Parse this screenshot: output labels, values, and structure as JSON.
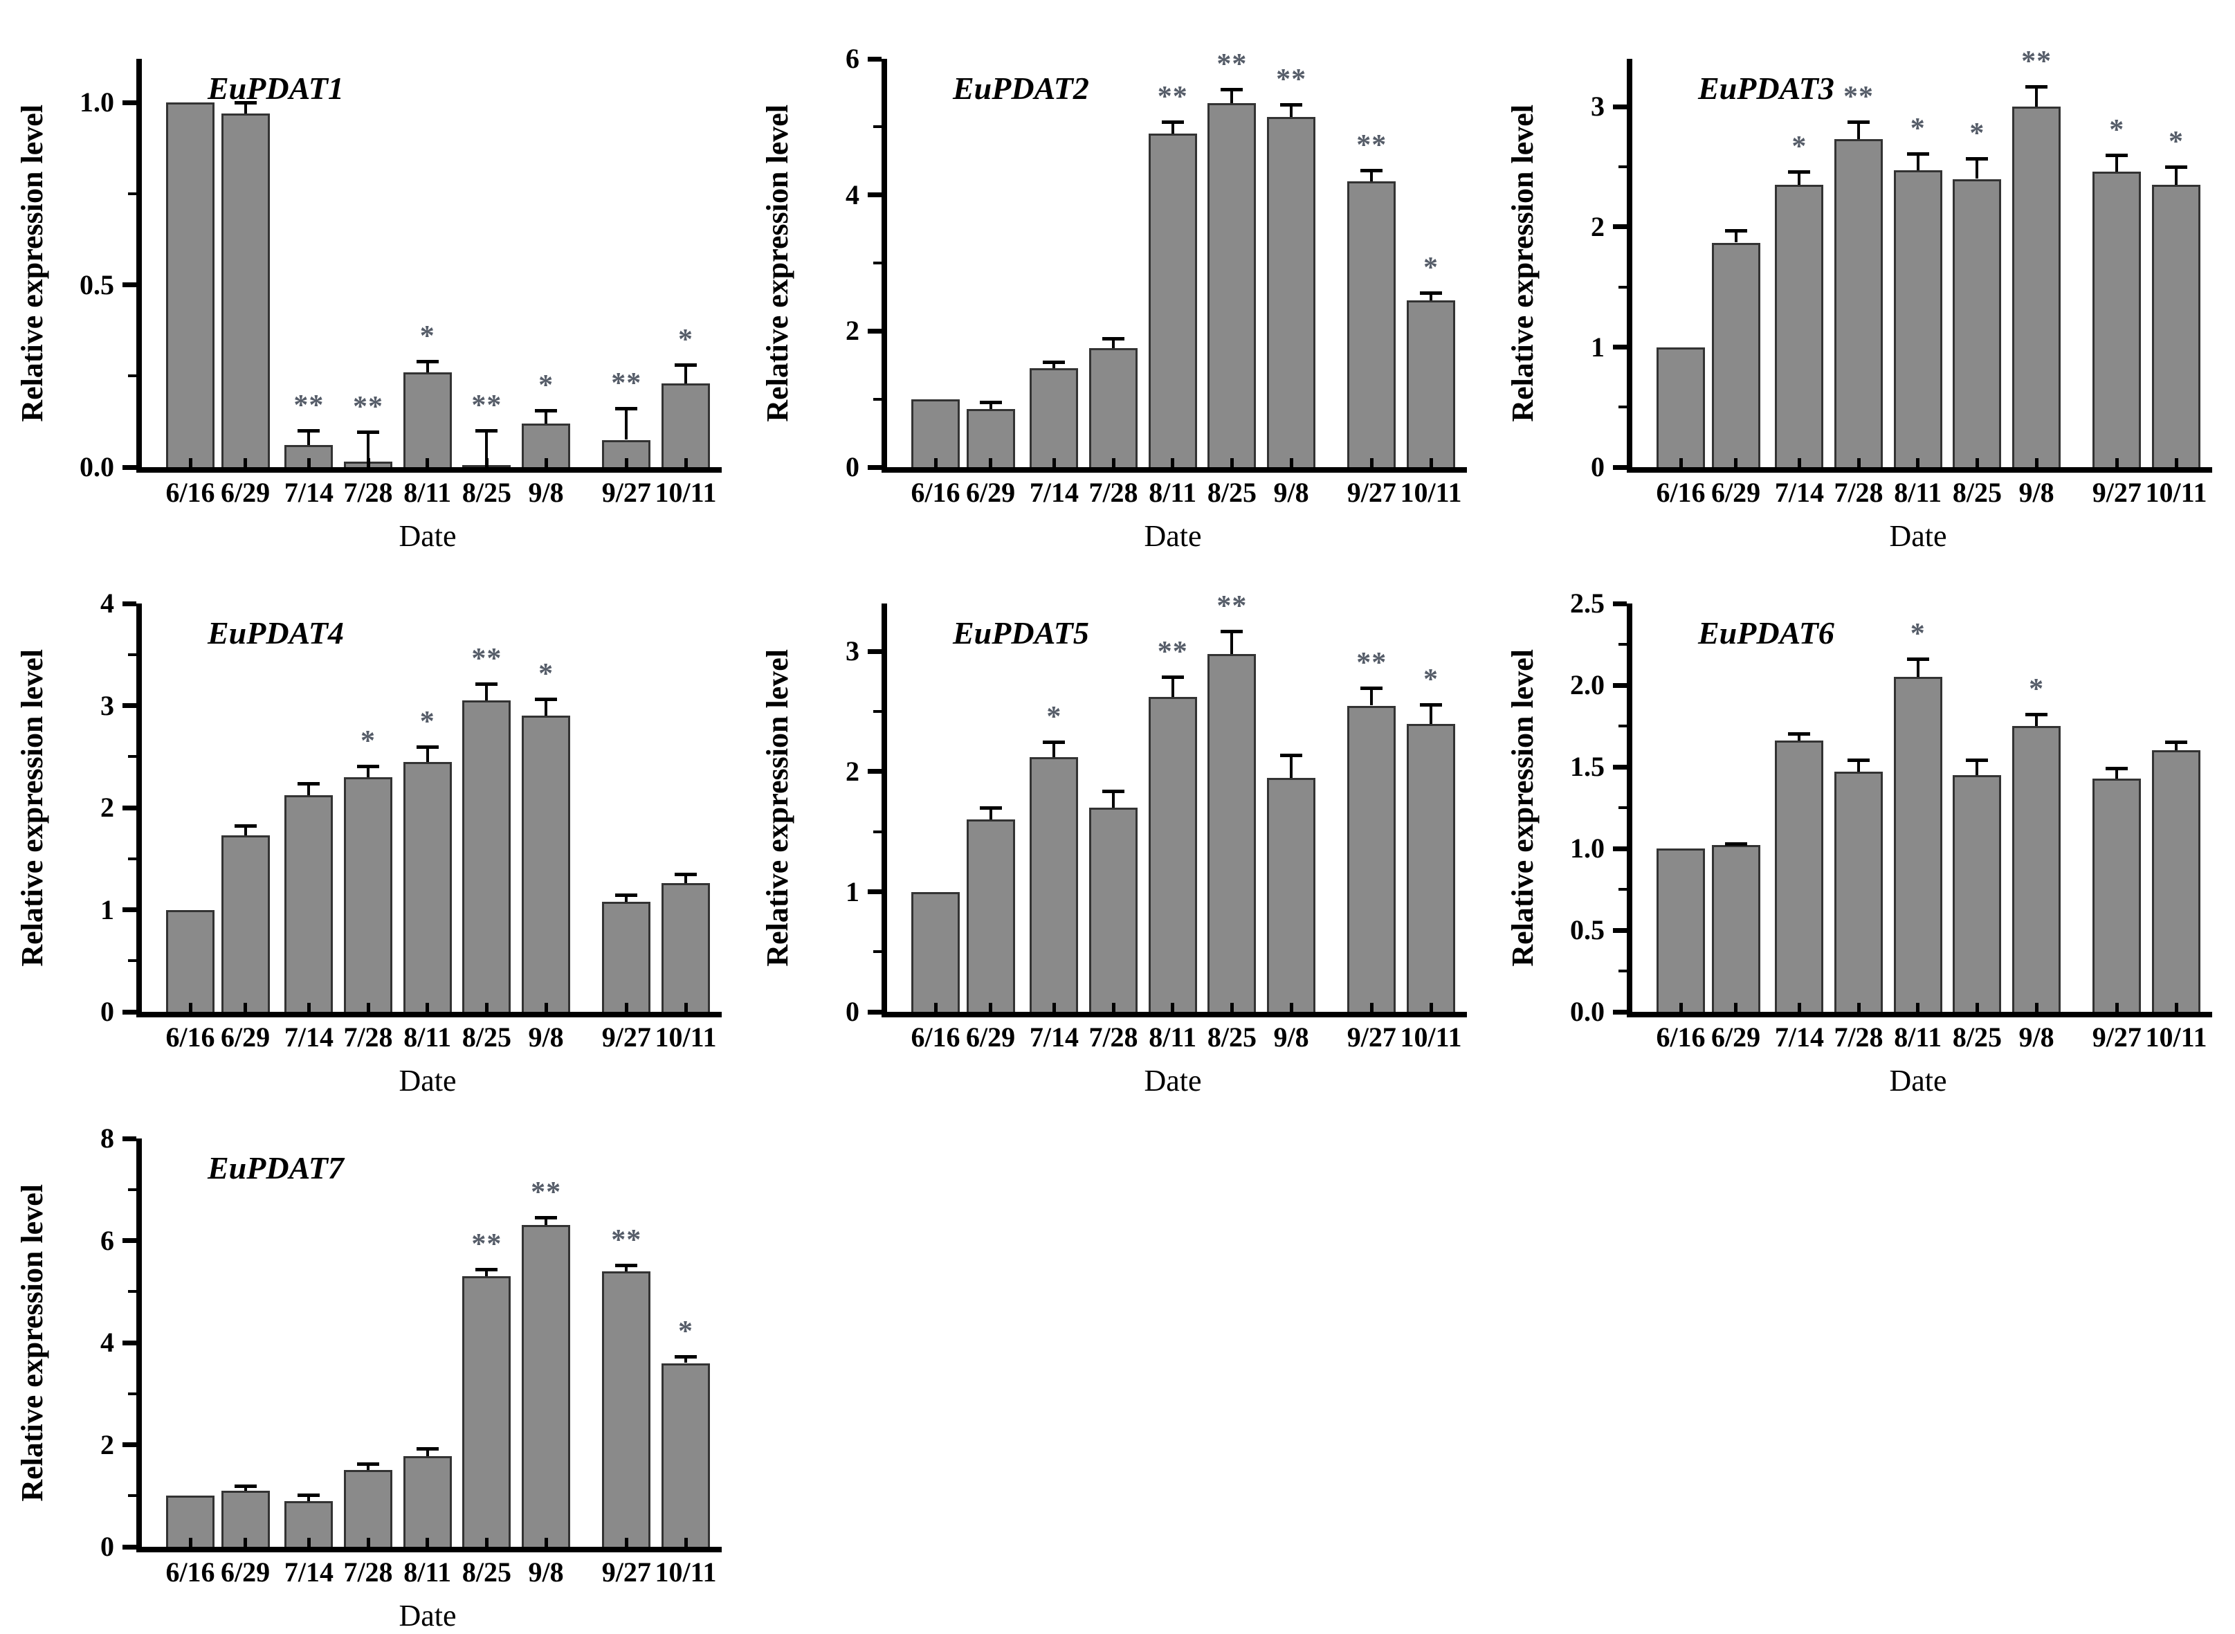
{
  "figure": {
    "background": "#ffffff",
    "ylabel": "Relative expression level",
    "xlabel": "Date",
    "categories": [
      "6/16",
      "6/29",
      "7/14",
      "7/28",
      "8/11",
      "8/25",
      "9/8",
      "9/27",
      "10/11"
    ],
    "day_offsets": [
      0,
      13,
      28,
      42,
      56,
      70,
      84,
      103,
      117
    ],
    "colors": {
      "bar_fill": "#8a8a8a",
      "bar_border": "#333333",
      "axis": "#000000",
      "text": "#000000",
      "star": "#555c68"
    }
  },
  "chart_data": [
    {
      "type": "bar",
      "title": "EuPDAT1",
      "xlabel": "Date",
      "ylabel": "Relative expression level",
      "categories": [
        "6/16",
        "6/29",
        "7/14",
        "7/28",
        "8/11",
        "8/25",
        "9/8",
        "9/27",
        "10/11"
      ],
      "values": [
        1.0,
        0.97,
        0.06,
        0.015,
        0.26,
        0.005,
        0.12,
        0.075,
        0.23
      ],
      "errors": [
        0,
        0.035,
        0.045,
        0.085,
        0.035,
        0.1,
        0.04,
        0.09,
        0.055
      ],
      "significance": [
        "",
        "",
        "**",
        "**",
        "*",
        "**",
        "*",
        "**",
        "*"
      ],
      "ylim": [
        0,
        1.12
      ],
      "ytick_values": [
        0,
        0.5,
        1.0
      ],
      "ytick_labels": [
        "0.0",
        "0.5",
        "1.0"
      ],
      "yminor_values": [
        0.25,
        0.75
      ]
    },
    {
      "type": "bar",
      "title": "EuPDAT2",
      "xlabel": "Date",
      "ylabel": "Relative expression level",
      "categories": [
        "6/16",
        "6/29",
        "7/14",
        "7/28",
        "8/11",
        "8/25",
        "9/8",
        "9/27",
        "10/11"
      ],
      "values": [
        1.0,
        0.85,
        1.45,
        1.75,
        4.9,
        5.35,
        5.15,
        4.2,
        2.45
      ],
      "errors": [
        0,
        0.13,
        0.12,
        0.16,
        0.2,
        0.22,
        0.2,
        0.18,
        0.13
      ],
      "significance": [
        "",
        "",
        "",
        "",
        "**",
        "**",
        "**",
        "**",
        "*"
      ],
      "ylim": [
        0,
        6
      ],
      "ytick_values": [
        0,
        2,
        4,
        6
      ],
      "ytick_labels": [
        "0",
        "2",
        "4",
        "6"
      ],
      "yminor_values": [
        1,
        3,
        5
      ]
    },
    {
      "type": "bar",
      "title": "EuPDAT3",
      "xlabel": "Date",
      "ylabel": "Relative expression level",
      "categories": [
        "6/16",
        "6/29",
        "7/14",
        "7/28",
        "8/11",
        "8/25",
        "9/8",
        "9/27",
        "10/11"
      ],
      "values": [
        1.0,
        1.87,
        2.35,
        2.73,
        2.47,
        2.4,
        3.0,
        2.46,
        2.35
      ],
      "errors": [
        0,
        0.11,
        0.12,
        0.16,
        0.15,
        0.18,
        0.18,
        0.15,
        0.16
      ],
      "significance": [
        "",
        "",
        "*",
        "**",
        "*",
        "*",
        "**",
        "*",
        "*"
      ],
      "ylim": [
        0,
        3.4
      ],
      "ytick_values": [
        0,
        1,
        2,
        3
      ],
      "ytick_labels": [
        "0",
        "1",
        "2",
        "3"
      ],
      "yminor_values": [
        0.5,
        1.5,
        2.5
      ]
    },
    {
      "type": "bar",
      "title": "EuPDAT4",
      "xlabel": "Date",
      "ylabel": "Relative expression level",
      "categories": [
        "6/16",
        "6/29",
        "7/14",
        "7/28",
        "8/11",
        "8/25",
        "9/8",
        "9/27",
        "10/11"
      ],
      "values": [
        1.0,
        1.73,
        2.12,
        2.3,
        2.45,
        3.05,
        2.9,
        1.08,
        1.26
      ],
      "errors": [
        0,
        0.11,
        0.13,
        0.12,
        0.16,
        0.18,
        0.18,
        0.08,
        0.1
      ],
      "significance": [
        "",
        "",
        "",
        "*",
        "*",
        "**",
        "*",
        "",
        ""
      ],
      "ylim": [
        0,
        4
      ],
      "ytick_values": [
        0,
        1,
        2,
        3,
        4
      ],
      "ytick_labels": [
        "0",
        "1",
        "2",
        "3",
        "4"
      ],
      "yminor_values": [
        0.5,
        1.5,
        2.5,
        3.5
      ]
    },
    {
      "type": "bar",
      "title": "EuPDAT5",
      "xlabel": "Date",
      "ylabel": "Relative expression level",
      "categories": [
        "6/16",
        "6/29",
        "7/14",
        "7/28",
        "8/11",
        "8/25",
        "9/8",
        "9/27",
        "10/11"
      ],
      "values": [
        1.0,
        1.6,
        2.12,
        1.7,
        2.62,
        2.98,
        1.95,
        2.55,
        2.4
      ],
      "errors": [
        0,
        0.11,
        0.14,
        0.15,
        0.18,
        0.2,
        0.2,
        0.16,
        0.17
      ],
      "significance": [
        "",
        "",
        "*",
        "",
        "**",
        "**",
        "",
        "**",
        "*"
      ],
      "ylim": [
        0,
        3.4
      ],
      "ytick_values": [
        0,
        1,
        2,
        3
      ],
      "ytick_labels": [
        "0",
        "1",
        "2",
        "3"
      ],
      "yminor_values": [
        0.5,
        1.5,
        2.5
      ]
    },
    {
      "type": "bar",
      "title": "EuPDAT6",
      "xlabel": "Date",
      "ylabel": "Relative expression level",
      "categories": [
        "6/16",
        "6/29",
        "7/14",
        "7/28",
        "8/11",
        "8/25",
        "9/8",
        "9/27",
        "10/11"
      ],
      "values": [
        1.0,
        1.02,
        1.66,
        1.47,
        2.05,
        1.45,
        1.75,
        1.43,
        1.6
      ],
      "errors": [
        0,
        0.02,
        0.05,
        0.08,
        0.12,
        0.1,
        0.08,
        0.07,
        0.06
      ],
      "significance": [
        "",
        "",
        "",
        "",
        "*",
        "",
        "*",
        "",
        ""
      ],
      "ylim": [
        0,
        2.5
      ],
      "ytick_values": [
        0,
        0.5,
        1.0,
        1.5,
        2.0,
        2.5
      ],
      "ytick_labels": [
        "0.0",
        "0.5",
        "1.0",
        "1.5",
        "2.0",
        "2.5"
      ],
      "yminor_values": [
        0.25,
        0.75,
        1.25,
        1.75,
        2.25
      ]
    },
    {
      "type": "bar",
      "title": "EuPDAT7",
      "xlabel": "Date",
      "ylabel": "Relative expression level",
      "categories": [
        "6/16",
        "6/29",
        "7/14",
        "7/28",
        "8/11",
        "8/25",
        "9/8",
        "9/27",
        "10/11"
      ],
      "values": [
        1.0,
        1.1,
        0.9,
        1.5,
        1.78,
        5.3,
        6.3,
        5.4,
        3.6
      ],
      "errors": [
        0,
        0.12,
        0.15,
        0.15,
        0.18,
        0.16,
        0.18,
        0.15,
        0.15
      ],
      "significance": [
        "",
        "",
        "",
        "",
        "",
        "**",
        "**",
        "**",
        "*"
      ],
      "ylim": [
        0,
        8
      ],
      "ytick_values": [
        0,
        2,
        4,
        6,
        8
      ],
      "ytick_labels": [
        "0",
        "2",
        "4",
        "6",
        "8"
      ],
      "yminor_values": [
        1,
        3,
        5,
        7
      ]
    }
  ]
}
